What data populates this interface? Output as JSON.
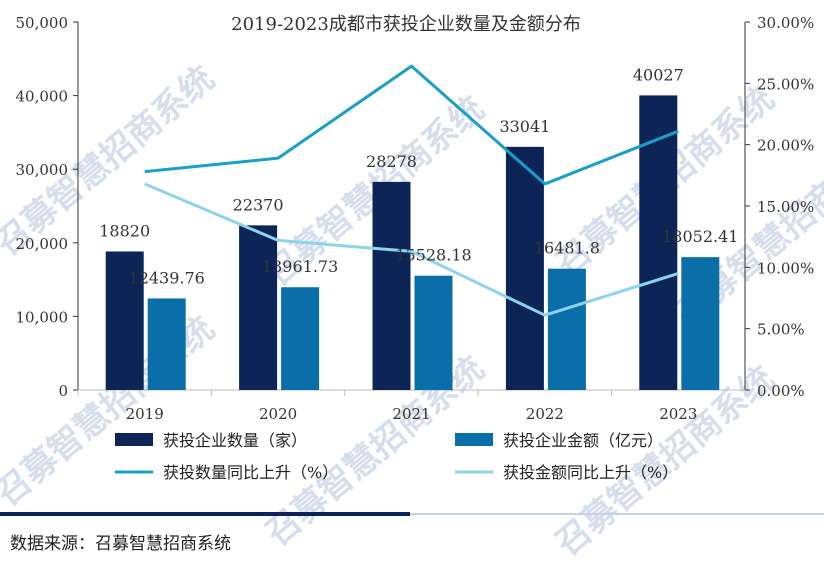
{
  "chart_data": {
    "type": "bar+line",
    "title": "2019-2023成都市获投企业数量及金额分布",
    "categories": [
      "2019",
      "2020",
      "2021",
      "2022",
      "2023"
    ],
    "series": [
      {
        "name": "获投企业数量（家）",
        "kind": "bar",
        "axis": "left",
        "color": "#0d2556",
        "values": [
          18820,
          22370,
          28278,
          33041,
          40027
        ],
        "labels": [
          "18820",
          "22370",
          "28278",
          "33041",
          "40027"
        ]
      },
      {
        "name": "获投企业金额（亿元）",
        "kind": "bar",
        "axis": "left",
        "color": "#0a6fa8",
        "values": [
          12439.76,
          13961.73,
          15528.18,
          16481.8,
          18052.41
        ],
        "labels": [
          "12439.76",
          "13961.73",
          "15528.18",
          "16481.8",
          "18052.41"
        ]
      },
      {
        "name": "获投数量同比上升（%）",
        "kind": "line",
        "axis": "right",
        "color": "#1aa0c8",
        "values": [
          17.8,
          18.9,
          26.4,
          16.8,
          21.1
        ]
      },
      {
        "name": "获投金额同比上升（%）",
        "kind": "line",
        "axis": "right",
        "color": "#8dd3ea",
        "values": [
          16.8,
          12.2,
          11.3,
          6.1,
          9.5
        ]
      }
    ],
    "left_axis": {
      "min": 0,
      "max": 50000,
      "ticks": [
        0,
        10000,
        20000,
        30000,
        40000,
        50000
      ],
      "tick_labels": [
        "0",
        "10,000",
        "20,000",
        "30,000",
        "40,000",
        "50,000"
      ]
    },
    "right_axis": {
      "min": 0,
      "max": 30,
      "ticks": [
        0,
        5,
        10,
        15,
        20,
        25,
        30
      ],
      "tick_labels": [
        "0.00%",
        "5.00%",
        "10.00%",
        "15.00%",
        "20.00%",
        "25.00%",
        "30.00%"
      ]
    },
    "grid": false,
    "legend_position": "bottom"
  },
  "watermark": "召募智慧招商系统",
  "source_text": "数据来源：召募智慧招商系统"
}
